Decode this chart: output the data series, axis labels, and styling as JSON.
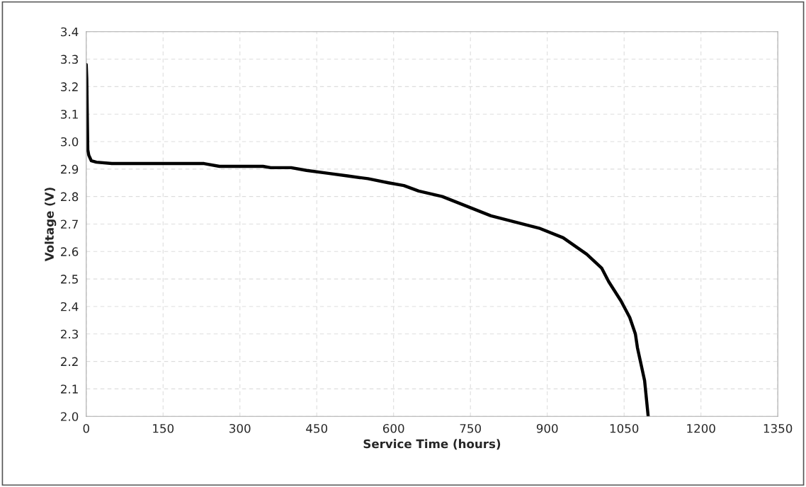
{
  "chart_data": {
    "type": "line",
    "xlabel": "Service Time (hours)",
    "ylabel": "Voltage (V)",
    "x": [
      0,
      1,
      2,
      3,
      5,
      10,
      20,
      50,
      230,
      260,
      345,
      360,
      400,
      430,
      470,
      510,
      550,
      590,
      620,
      649,
      695,
      790,
      884,
      931,
      977,
      1006,
      1020,
      1044,
      1061,
      1072,
      1076,
      1090,
      1097
    ],
    "series": [
      {
        "color": "#000000",
        "values": [
          3.28,
          3.23,
          3.1,
          2.97,
          2.95,
          2.93,
          2.925,
          2.92,
          2.92,
          2.91,
          2.91,
          2.905,
          2.905,
          2.895,
          2.885,
          2.875,
          2.865,
          2.85,
          2.84,
          2.82,
          2.8,
          2.73,
          2.685,
          2.65,
          2.59,
          2.54,
          2.49,
          2.42,
          2.36,
          2.3,
          2.25,
          2.13,
          2.0
        ]
      }
    ],
    "xlim": [
      0,
      1350
    ],
    "xticks": [
      0,
      150,
      300,
      450,
      600,
      750,
      900,
      1050,
      1200,
      1350
    ],
    "ylim": [
      2.0,
      3.4
    ],
    "yticks": [
      {
        "value": 2.0,
        "label": "2.0"
      },
      {
        "value": 2.1,
        "label": "2.1"
      },
      {
        "value": 2.2,
        "label": "2.2"
      },
      {
        "value": 2.3,
        "label": "2.3"
      },
      {
        "value": 2.4,
        "label": "2.4"
      },
      {
        "value": 2.5,
        "label": "2.5"
      },
      {
        "value": 2.6,
        "label": "2.6"
      },
      {
        "value": 2.7,
        "label": "2.7"
      },
      {
        "value": 2.8,
        "label": "2.8"
      },
      {
        "value": 2.9,
        "label": "2.9"
      },
      {
        "value": 3.0,
        "label": "3.0"
      },
      {
        "value": 3.1,
        "label": "3.1"
      },
      {
        "value": 3.2,
        "label": "3.2"
      },
      {
        "value": 3.3,
        "label": "3.3"
      },
      {
        "value": 3.4,
        "label": "3.4"
      }
    ],
    "grid": true,
    "line_style": "solid",
    "marker": "none",
    "legend": false
  }
}
